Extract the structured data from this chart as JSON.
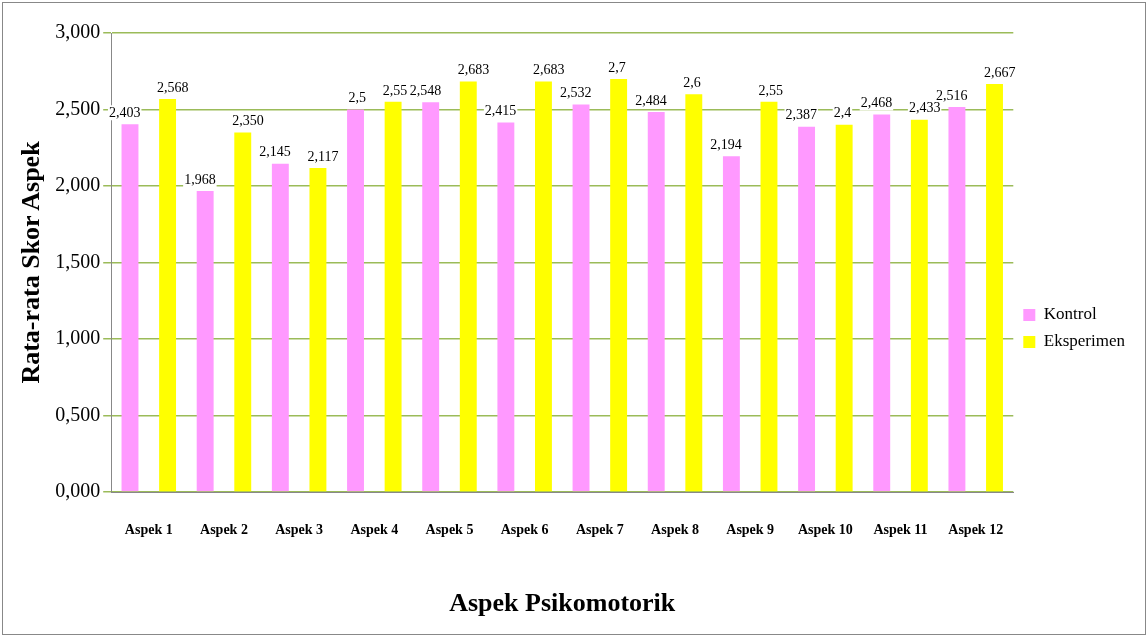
{
  "chart_data": {
    "type": "bar",
    "xlabel": "Aspek Psikomotorik",
    "ylabel": "Rata-rata Skor Aspek",
    "categories": [
      "Aspek 1",
      "Aspek 2",
      "Aspek 3",
      "Aspek 4",
      "Aspek 5",
      "Aspek 6",
      "Aspek 7",
      "Aspek 8",
      "Aspek 9",
      "Aspek 10",
      "Aspek 11",
      "Aspek 12"
    ],
    "series": [
      {
        "name": "Kontrol",
        "color": "#ff99ff",
        "values": [
          2.403,
          1.968,
          2.145,
          2.5,
          2.548,
          2.415,
          2.532,
          2.484,
          2.194,
          2.387,
          2.468,
          2.516
        ],
        "value_labels": [
          "2,403",
          "1,968",
          "2,145",
          "2,5",
          "2,548",
          "2,415",
          "2,532",
          "2,484",
          "2,194",
          "2,387",
          "2,468",
          "2,516"
        ]
      },
      {
        "name": "Eksperimen",
        "color": "#ffff00",
        "values": [
          2.568,
          2.35,
          2.117,
          2.55,
          2.683,
          2.683,
          2.7,
          2.6,
          2.55,
          2.4,
          2.433,
          2.667
        ],
        "value_labels": [
          "2,568",
          "2,350",
          "2,117",
          "2,55",
          "2,683",
          "2,683",
          "2,7",
          "2,6",
          "2,55",
          "2,4",
          "2,433",
          "2,667"
        ]
      }
    ],
    "ylim": [
      0,
      3
    ],
    "yticks": [
      {
        "value": 0,
        "label": "0,000"
      },
      {
        "value": 0.5,
        "label": "0,500"
      },
      {
        "value": 1,
        "label": "1,000"
      },
      {
        "value": 1.5,
        "label": "1,500"
      },
      {
        "value": 2,
        "label": "2,000"
      },
      {
        "value": 2.5,
        "label": "2,500"
      },
      {
        "value": 3,
        "label": "3,000"
      }
    ],
    "grid": "y",
    "legend": "right"
  }
}
